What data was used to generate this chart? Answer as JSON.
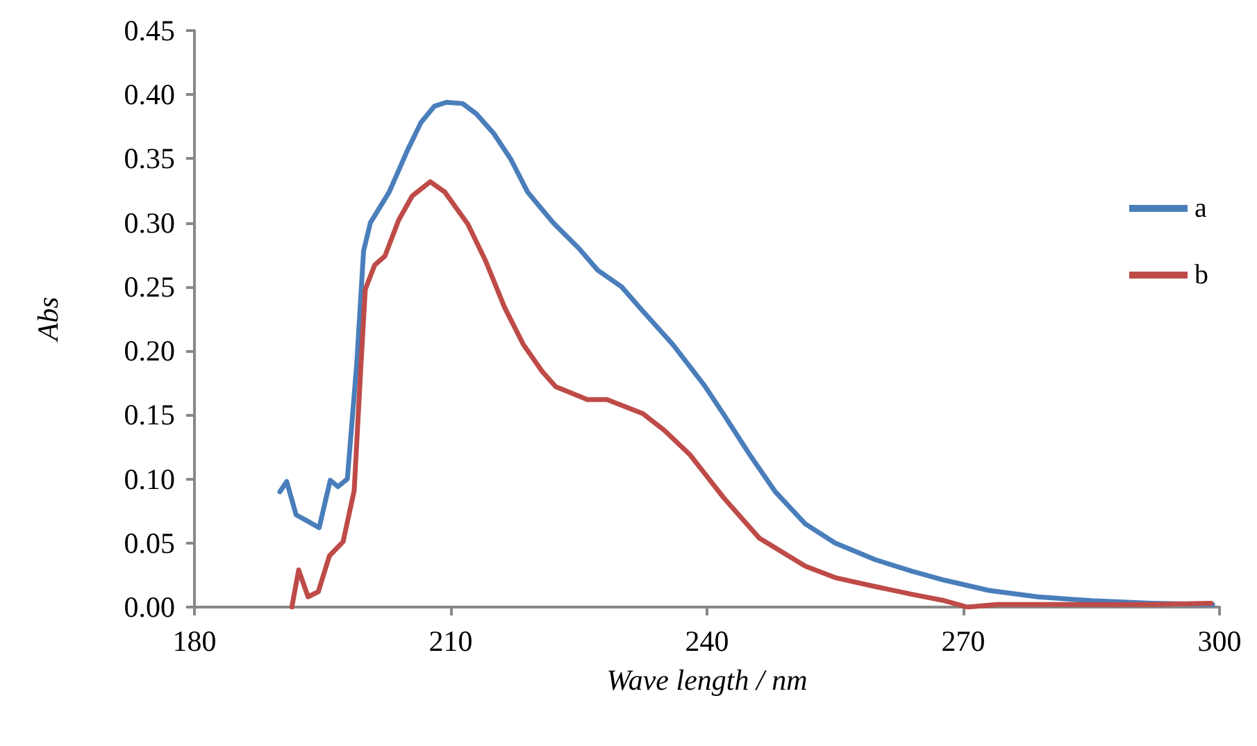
{
  "chart_data": {
    "type": "line",
    "xlabel": "Wave length / nm",
    "ylabel": "Abs",
    "xlim": [
      180,
      300
    ],
    "xticks": [
      180,
      210,
      240,
      270,
      300
    ],
    "ylim": [
      0,
      0.45
    ],
    "yticks": [
      {
        "value": 0,
        "label": "0.00"
      },
      {
        "value": 0.05,
        "label": "0.05"
      },
      {
        "value": 0.1,
        "label": "0.10"
      },
      {
        "value": 0.15,
        "label": "0.15"
      },
      {
        "value": 0.2,
        "label": "0.20"
      },
      {
        "value": 0.25,
        "label": "0.25"
      },
      {
        "value": 0.3,
        "label": "0.30"
      },
      {
        "value": 0.35,
        "label": "0.35"
      },
      {
        "value": 0.4,
        "label": "0.40"
      },
      {
        "value": 0.45,
        "label": "0.45"
      }
    ],
    "grid": false,
    "legend": "right",
    "marker": "none",
    "line_style": "solid",
    "series": [
      {
        "name": "a",
        "color": "#4a7ebb",
        "x": [
          190,
          190.8,
          191.9,
          193,
          194.6,
          195.9,
          196.8,
          197.9,
          199,
          199.8,
          200.6,
          202.8,
          204.9,
          206.5,
          208.1,
          209.5,
          211.4,
          213,
          215,
          217,
          219,
          222,
          225,
          227.2,
          230,
          232.5,
          236,
          239.7,
          242,
          245,
          248,
          251.5,
          255,
          259.7,
          264,
          267.8,
          273,
          278.7,
          285,
          292,
          299.2
        ],
        "values": [
          0.09,
          0.098,
          0.072,
          0.068,
          0.062,
          0.099,
          0.094,
          0.1,
          0.19,
          0.278,
          0.3,
          0.324,
          0.356,
          0.378,
          0.391,
          0.394,
          0.393,
          0.385,
          0.37,
          0.35,
          0.324,
          0.3,
          0.28,
          0.263,
          0.25,
          0.231,
          0.205,
          0.173,
          0.15,
          0.119,
          0.09,
          0.065,
          0.05,
          0.037,
          0.028,
          0.021,
          0.013,
          0.008,
          0.005,
          0.003,
          0.002
        ]
      },
      {
        "name": "b",
        "color": "#be4b48",
        "x": [
          191.4,
          192.2,
          193.3,
          194.5,
          195.8,
          197.4,
          198.7,
          199.5,
          200,
          201.1,
          202.3,
          203.9,
          205.5,
          207.6,
          209.3,
          212,
          214.1,
          216.3,
          218.5,
          220.7,
          222.3,
          226,
          228.3,
          232.5,
          235,
          238,
          242,
          246.1,
          251.5,
          255,
          259.7,
          264,
          267.8,
          270.5,
          274,
          278.7,
          285,
          292,
          299
        ],
        "values": [
          0,
          0.029,
          0.008,
          0.012,
          0.04,
          0.051,
          0.091,
          0.19,
          0.248,
          0.267,
          0.274,
          0.302,
          0.321,
          0.332,
          0.324,
          0.299,
          0.27,
          0.234,
          0.205,
          0.184,
          0.172,
          0.162,
          0.162,
          0.151,
          0.138,
          0.119,
          0.085,
          0.054,
          0.032,
          0.023,
          0.016,
          0.01,
          0.005,
          0,
          0.002,
          0.002,
          0.002,
          0.002,
          0.003
        ]
      }
    ]
  }
}
